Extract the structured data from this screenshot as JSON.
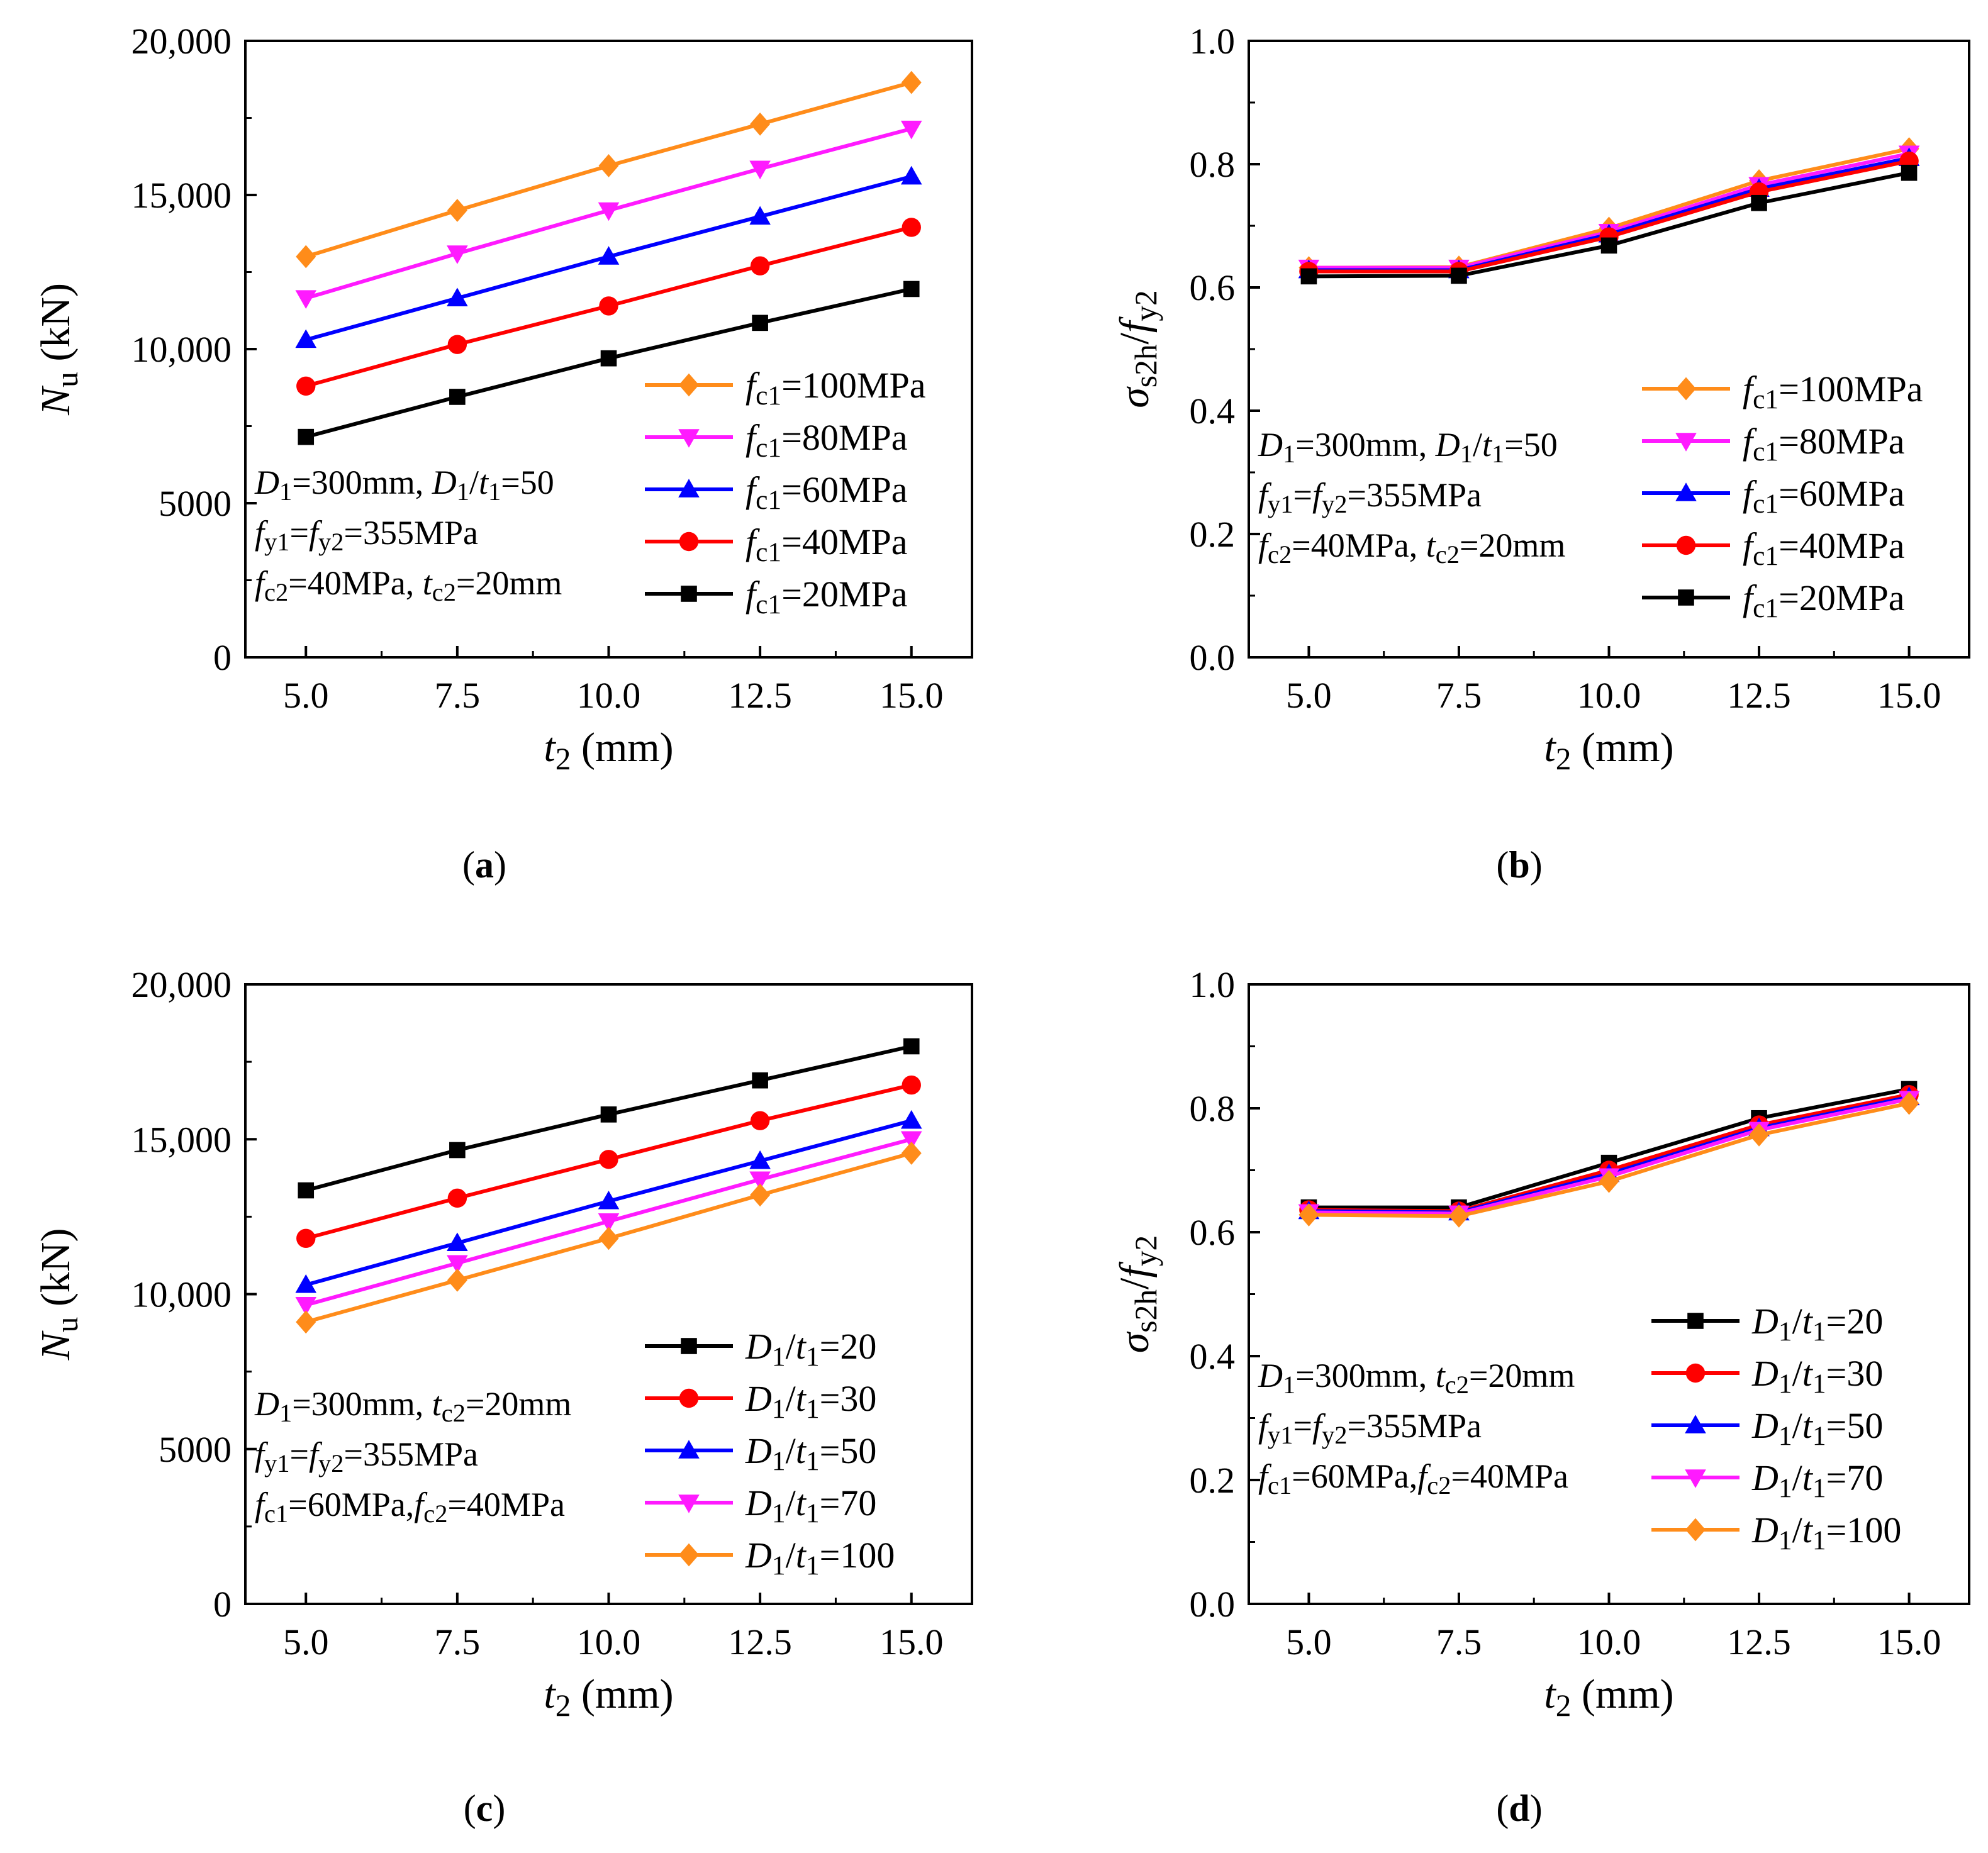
{
  "chart_data": [
    {
      "type": "line",
      "caption": "a",
      "x": [
        5.0,
        7.5,
        10.0,
        12.5,
        15.0
      ],
      "xticks": [
        "5.0",
        "7.5",
        "10.0",
        "12.5",
        "15.0"
      ],
      "yticks": [
        "0",
        "5000",
        "10,000",
        "15,000",
        "20,000"
      ],
      "xlim": [
        4.0,
        16.0
      ],
      "ylim": [
        0,
        20000
      ],
      "xlabel": {
        "base": "t",
        "sub": "2",
        "rest": " (mm)"
      },
      "ylabel": {
        "base": "N",
        "sub": "u",
        "rest": " (kN)",
        "italic_base": true
      },
      "legend_position": "center-right",
      "series": [
        {
          "name": "fc1=100MPa",
          "label": {
            "base": "f",
            "sub": "c1",
            "rest": "=100MPa"
          },
          "color": "#FF8C1A",
          "marker": "diamond",
          "values": [
            13000,
            14500,
            15950,
            17300,
            18650
          ]
        },
        {
          "name": "fc1=80MPa",
          "label": {
            "base": "f",
            "sub": "c1",
            "rest": "=80MPa"
          },
          "color": "#FF1AFF",
          "marker": "triangle-down",
          "values": [
            11650,
            13100,
            14500,
            15850,
            17150
          ]
        },
        {
          "name": "fc1=60MPa",
          "label": {
            "base": "f",
            "sub": "c1",
            "rest": "=60MPa"
          },
          "color": "#0000FF",
          "marker": "triangle-up",
          "values": [
            10300,
            11650,
            13000,
            14300,
            15600
          ]
        },
        {
          "name": "fc1=40MPa",
          "label": {
            "base": "f",
            "sub": "c1",
            "rest": "=40MPa"
          },
          "color": "#FF0000",
          "marker": "circle",
          "values": [
            8800,
            10150,
            11400,
            12700,
            13950
          ]
        },
        {
          "name": "fc1=20MPa",
          "label": {
            "base": "f",
            "sub": "c1",
            "rest": "=20MPa"
          },
          "color": "#000000",
          "marker": "square",
          "values": [
            7150,
            8450,
            9700,
            10850,
            11950
          ]
        }
      ],
      "annotations": [
        [
          {
            "t": "D",
            "i": true
          },
          {
            "t": "1",
            "s": true
          },
          {
            "t": "=300mm, "
          },
          {
            "t": "D",
            "i": true
          },
          {
            "t": "1",
            "s": true
          },
          {
            "t": "/"
          },
          {
            "t": "t",
            "i": true
          },
          {
            "t": "1",
            "s": true
          },
          {
            "t": "=50"
          }
        ],
        [
          {
            "t": "f",
            "i": true
          },
          {
            "t": "y1",
            "s": true
          },
          {
            "t": "="
          },
          {
            "t": "f",
            "i": true
          },
          {
            "t": "y2",
            "s": true
          },
          {
            "t": "=355MPa"
          }
        ],
        [
          {
            "t": "f",
            "i": true
          },
          {
            "t": "c2",
            "s": true
          },
          {
            "t": "=40MPa, "
          },
          {
            "t": "t",
            "i": true
          },
          {
            "t": "c2",
            "s": true
          },
          {
            "t": "=20mm"
          }
        ]
      ]
    },
    {
      "type": "line",
      "caption": "b",
      "x": [
        5.0,
        7.5,
        10.0,
        12.5,
        15.0
      ],
      "xticks": [
        "5.0",
        "7.5",
        "10.0",
        "12.5",
        "15.0"
      ],
      "yticks": [
        "0.0",
        "0.2",
        "0.4",
        "0.6",
        "0.8",
        "1.0"
      ],
      "xlim": [
        4.0,
        16.0
      ],
      "ylim": [
        0,
        1.0
      ],
      "xlabel": {
        "base": "t",
        "sub": "2",
        "rest": " (mm)"
      },
      "ylabel": {
        "base": "σ",
        "sub": "s2h",
        "rest": "/",
        "base2": "f",
        "sub2": "y2"
      },
      "legend_position": "lower-right",
      "series": [
        {
          "name": "fc1=100MPa",
          "label": {
            "base": "f",
            "sub": "c1",
            "rest": "=100MPa"
          },
          "color": "#FF8C1A",
          "marker": "diamond",
          "values": [
            0.632,
            0.633,
            0.696,
            0.773,
            0.825
          ]
        },
        {
          "name": "fc1=80MPa",
          "label": {
            "base": "f",
            "sub": "c1",
            "rest": "=80MPa"
          },
          "color": "#FF1AFF",
          "marker": "triangle-down",
          "values": [
            0.632,
            0.632,
            0.69,
            0.766,
            0.817
          ]
        },
        {
          "name": "fc1=60MPa",
          "label": {
            "base": "f",
            "sub": "c1",
            "rest": "=60MPa"
          },
          "color": "#0000FF",
          "marker": "triangle-up",
          "values": [
            0.628,
            0.628,
            0.686,
            0.76,
            0.81
          ]
        },
        {
          "name": "fc1=40MPa",
          "label": {
            "base": "f",
            "sub": "c1",
            "rest": "=40MPa"
          },
          "color": "#FF0000",
          "marker": "circle",
          "values": [
            0.626,
            0.626,
            0.682,
            0.755,
            0.805
          ]
        },
        {
          "name": "fc1=20MPa",
          "label": {
            "base": "f",
            "sub": "c1",
            "rest": "=20MPa"
          },
          "color": "#000000",
          "marker": "square",
          "values": [
            0.618,
            0.619,
            0.668,
            0.737,
            0.786
          ]
        }
      ],
      "annotations": [
        [
          {
            "t": "D",
            "i": true
          },
          {
            "t": "1",
            "s": true
          },
          {
            "t": "=300mm, "
          },
          {
            "t": "D",
            "i": true
          },
          {
            "t": "1",
            "s": true
          },
          {
            "t": "/"
          },
          {
            "t": "t",
            "i": true
          },
          {
            "t": "1",
            "s": true
          },
          {
            "t": "=50"
          }
        ],
        [
          {
            "t": "f",
            "i": true
          },
          {
            "t": "y1",
            "s": true
          },
          {
            "t": "="
          },
          {
            "t": "f",
            "i": true
          },
          {
            "t": "y2",
            "s": true
          },
          {
            "t": "=355MPa"
          }
        ],
        [
          {
            "t": "f",
            "i": true
          },
          {
            "t": "c2",
            "s": true
          },
          {
            "t": "=40MPa, "
          },
          {
            "t": "t",
            "i": true
          },
          {
            "t": "c2",
            "s": true
          },
          {
            "t": "=20mm"
          }
        ]
      ]
    },
    {
      "type": "line",
      "caption": "c",
      "x": [
        5.0,
        7.5,
        10.0,
        12.5,
        15.0
      ],
      "xticks": [
        "5.0",
        "7.5",
        "10.0",
        "12.5",
        "15.0"
      ],
      "yticks": [
        "0",
        "5000",
        "10,000",
        "15,000",
        "20,000"
      ],
      "xlim": [
        4.0,
        16.0
      ],
      "ylim": [
        0,
        20000
      ],
      "xlabel": {
        "base": "t",
        "sub": "2",
        "rest": " (mm)"
      },
      "ylabel": {
        "base": "N",
        "sub": "u",
        "rest": " (kN)",
        "italic_base": true
      },
      "legend_position": "lower-right",
      "series": [
        {
          "name": "D1/t1=20",
          "label": {
            "base": "D",
            "sub": "1",
            "rest": "/",
            "base2": "t",
            "sub2": "1",
            "rest2": "=20"
          },
          "color": "#000000",
          "marker": "square",
          "values": [
            13350,
            14650,
            15800,
            16900,
            18000
          ]
        },
        {
          "name": "D1/t1=30",
          "label": {
            "base": "D",
            "sub": "1",
            "rest": "/",
            "base2": "t",
            "sub2": "1",
            "rest2": "=30"
          },
          "color": "#FF0000",
          "marker": "circle",
          "values": [
            11800,
            13100,
            14350,
            15600,
            16750
          ]
        },
        {
          "name": "D1/t1=50",
          "label": {
            "base": "D",
            "sub": "1",
            "rest": "/",
            "base2": "t",
            "sub2": "1",
            "rest2": "=50"
          },
          "color": "#0000FF",
          "marker": "triangle-up",
          "values": [
            10300,
            11650,
            13000,
            14300,
            15600
          ]
        },
        {
          "name": "D1/t1=70",
          "label": {
            "base": "D",
            "sub": "1",
            "rest": "/",
            "base2": "t",
            "sub2": "1",
            "rest2": "=70"
          },
          "color": "#FF1AFF",
          "marker": "triangle-down",
          "values": [
            9650,
            11000,
            12350,
            13700,
            15000
          ]
        },
        {
          "name": "D1/t1=100",
          "label": {
            "base": "D",
            "sub": "1",
            "rest": "/",
            "base2": "t",
            "sub2": "1",
            "rest2": "=100"
          },
          "color": "#FF8C1A",
          "marker": "diamond",
          "values": [
            9100,
            10450,
            11800,
            13200,
            14550
          ]
        }
      ],
      "annotations": [
        [
          {
            "t": "D",
            "i": true
          },
          {
            "t": "1",
            "s": true
          },
          {
            "t": "=300mm, "
          },
          {
            "t": "t",
            "i": true
          },
          {
            "t": "c2",
            "s": true
          },
          {
            "t": "=20mm"
          }
        ],
        [
          {
            "t": "f",
            "i": true
          },
          {
            "t": "y1",
            "s": true
          },
          {
            "t": "="
          },
          {
            "t": "f",
            "i": true
          },
          {
            "t": "y2",
            "s": true
          },
          {
            "t": "=355MPa"
          }
        ],
        [
          {
            "t": "f",
            "i": true
          },
          {
            "t": "c1",
            "s": true
          },
          {
            "t": "=60MPa,"
          },
          {
            "t": "f",
            "i": true
          },
          {
            "t": "c2",
            "s": true
          },
          {
            "t": "=40MPa"
          }
        ]
      ]
    },
    {
      "type": "line",
      "caption": "d",
      "x": [
        5.0,
        7.5,
        10.0,
        12.5,
        15.0
      ],
      "xticks": [
        "5.0",
        "7.5",
        "10.0",
        "12.5",
        "15.0"
      ],
      "yticks": [
        "0.0",
        "0.2",
        "0.4",
        "0.6",
        "0.8",
        "1.0"
      ],
      "xlim": [
        4.0,
        16.0
      ],
      "ylim": [
        0,
        1.0
      ],
      "xlabel": {
        "base": "t",
        "sub": "2",
        "rest": " (mm)"
      },
      "ylabel": {
        "base": "σ",
        "sub": "s2h",
        "rest": "/",
        "base2": "f",
        "sub2": "y2"
      },
      "legend_position": "lower-right",
      "series": [
        {
          "name": "D1/t1=20",
          "label": {
            "base": "D",
            "sub": "1",
            "rest": "/",
            "base2": "t",
            "sub2": "1",
            "rest2": "=20"
          },
          "color": "#000000",
          "marker": "square",
          "values": [
            0.64,
            0.64,
            0.712,
            0.784,
            0.831
          ]
        },
        {
          "name": "D1/t1=30",
          "label": {
            "base": "D",
            "sub": "1",
            "rest": "/",
            "base2": "t",
            "sub2": "1",
            "rest2": "=30"
          },
          "color": "#FF0000",
          "marker": "circle",
          "values": [
            0.636,
            0.634,
            0.7,
            0.773,
            0.822
          ]
        },
        {
          "name": "D1/t1=50",
          "label": {
            "base": "D",
            "sub": "1",
            "rest": "/",
            "base2": "t",
            "sub2": "1",
            "rest2": "=50"
          },
          "color": "#0000FF",
          "marker": "triangle-up",
          "values": [
            0.634,
            0.632,
            0.694,
            0.768,
            0.818
          ]
        },
        {
          "name": "D1/t1=70",
          "label": {
            "base": "D",
            "sub": "1",
            "rest": "/",
            "base2": "t",
            "sub2": "1",
            "rest2": "=70"
          },
          "color": "#FF1AFF",
          "marker": "triangle-down",
          "values": [
            0.632,
            0.63,
            0.69,
            0.765,
            0.815
          ]
        },
        {
          "name": "D1/t1=100",
          "label": {
            "base": "D",
            "sub": "1",
            "rest": "/",
            "base2": "t",
            "sub2": "1",
            "rest2": "=100"
          },
          "color": "#FF8C1A",
          "marker": "diamond",
          "values": [
            0.628,
            0.626,
            0.682,
            0.757,
            0.808
          ]
        }
      ],
      "annotations": [
        [
          {
            "t": "D",
            "i": true
          },
          {
            "t": "1",
            "s": true
          },
          {
            "t": "=300mm, "
          },
          {
            "t": "t",
            "i": true
          },
          {
            "t": "c2",
            "s": true
          },
          {
            "t": "=20mm"
          }
        ],
        [
          {
            "t": "f",
            "i": true
          },
          {
            "t": "y1",
            "s": true
          },
          {
            "t": "="
          },
          {
            "t": "f",
            "i": true
          },
          {
            "t": "y2",
            "s": true
          },
          {
            "t": "=355MPa"
          }
        ],
        [
          {
            "t": "f",
            "i": true
          },
          {
            "t": "c1",
            "s": true
          },
          {
            "t": "=60MPa,"
          },
          {
            "t": "f",
            "i": true
          },
          {
            "t": "c2",
            "s": true
          },
          {
            "t": "=40MPa"
          }
        ]
      ]
    }
  ]
}
